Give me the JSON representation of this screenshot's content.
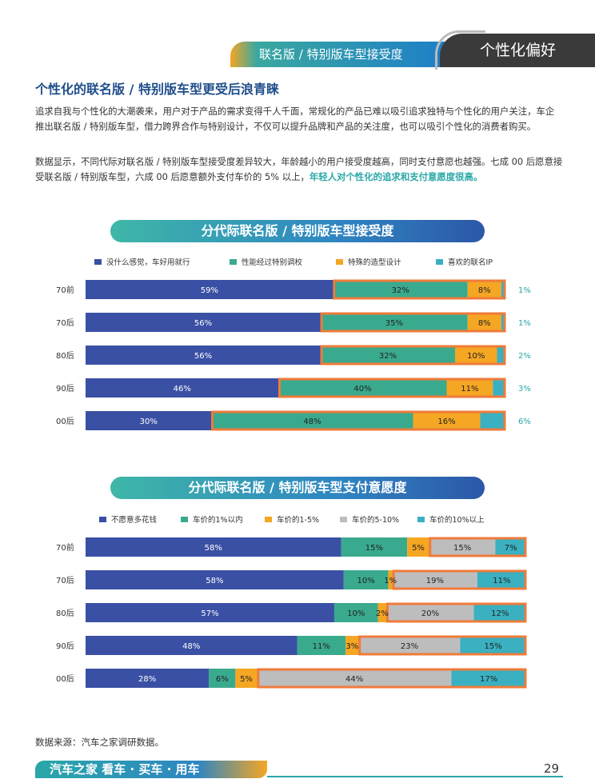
{
  "header": {
    "tab_label": "联名版 / 特别版车型接受度",
    "section": "个性化偏好"
  },
  "title": "个性化的联名版 / 特别版车型更受后浪青睐",
  "para1": "追求自我与个性化的大潮袭来，用户对于产品的需求变得千人千面，常规化的产品已难以吸引追求独特与个性化的用户关注，车企推出联名版 / 特别版车型，借力跨界合作与特别设计，不仅可以提升品牌和产品的关注度，也可以吸引个性化的消费者购买。",
  "para2a": "数据显示，不同代际对联名版 / 特别版车型接受度差异较大，年龄越小的用户接受度越高，同时支付意愿也越强。七成 00 后愿意接受联名版 / 特别版车型，六成 00 后愿意额外支付车价的 5% 以上，",
  "para2b": "年轻人对个性化的追求和支付意愿度很高。",
  "source": "数据来源：汽车之家调研数据。",
  "footer": {
    "brand": "汽车之家 看车 · 买车 · 用车",
    "page": "29"
  },
  "chart_data": [
    {
      "type": "bar",
      "title": "分代际联名版 / 特别版车型接受度",
      "categories": [
        "70前",
        "70后",
        "80后",
        "90后",
        "00后"
      ],
      "series": [
        {
          "name": "没什么感觉，车好用就行",
          "color": "#3a50a4",
          "values": [
            59,
            56,
            56,
            46,
            30
          ]
        },
        {
          "name": "性能经过特别调校",
          "color": "#3aaa8e",
          "values": [
            32,
            35,
            32,
            40,
            48
          ]
        },
        {
          "name": "特殊的造型设计",
          "color": "#f5a623",
          "values": [
            8,
            8,
            10,
            11,
            16
          ]
        },
        {
          "name": "喜欢的联名IP",
          "color": "#3ab0c0",
          "values": [
            1,
            1,
            2,
            3,
            6
          ]
        }
      ],
      "labels": [
        [
          "59%",
          "32%",
          "8%",
          "1%"
        ],
        [
          "56%",
          "35%",
          "8%",
          "1%"
        ],
        [
          "56%",
          "32%",
          "10%",
          "2%"
        ],
        [
          "46%",
          "40%",
          "11%",
          "3%"
        ],
        [
          "30%",
          "48%",
          "16%",
          "6%"
        ]
      ],
      "highlight_from_series": 1,
      "highlight_color": "#ef7b3a",
      "outside_last_label": true
    },
    {
      "type": "bar",
      "title": "分代际联名版 / 特别版车型支付意愿度",
      "categories": [
        "70前",
        "70后",
        "80后",
        "90后",
        "00后"
      ],
      "series": [
        {
          "name": "不愿意多花钱",
          "color": "#3a50a4",
          "values": [
            58,
            58,
            57,
            48,
            28
          ]
        },
        {
          "name": "车价的1%以内",
          "color": "#3aaa8e",
          "values": [
            15,
            10,
            10,
            11,
            6
          ]
        },
        {
          "name": "车价的1-5%",
          "color": "#f5a623",
          "values": [
            5,
            1,
            2,
            3,
            5
          ]
        },
        {
          "name": "车价的5-10%",
          "color": "#bdbdbd",
          "values": [
            15,
            19,
            20,
            23,
            44
          ]
        },
        {
          "name": "车价的10%以上",
          "color": "#3ab0c0",
          "values": [
            7,
            11,
            12,
            15,
            17
          ]
        }
      ],
      "labels": [
        [
          "58%",
          "15%",
          "5%",
          "15%",
          "7%"
        ],
        [
          "58%",
          "10%",
          "1%",
          "19%",
          "11%"
        ],
        [
          "57%",
          "10%",
          "2%",
          "20%",
          "12%"
        ],
        [
          "48%",
          "11%",
          "3%",
          "23%",
          "15%"
        ],
        [
          "28%",
          "6%",
          "5%",
          "44%",
          "17%"
        ]
      ],
      "highlight_from_series": 3,
      "highlight_color": "#ef7b3a",
      "outside_last_label": false
    }
  ]
}
